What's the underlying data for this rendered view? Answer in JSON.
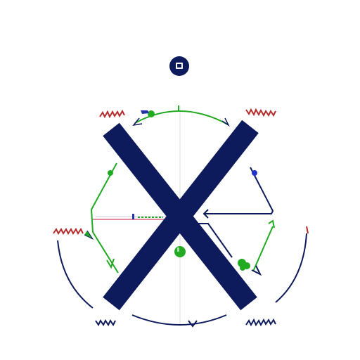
{
  "canvas": {
    "background": "#ffffff"
  },
  "colors": {
    "navy": "#0d1a5c",
    "green": "#22aa22",
    "red": "#b52a2a",
    "pink": "#e68aa0",
    "grey_line": "#d8d8d8"
  },
  "emblem": {
    "name": "x-mark",
    "badge_icon": "circle-badge-icon"
  },
  "labels": {
    "top_left": "",
    "top_right": "",
    "left": "",
    "bottom_left": "",
    "bottom_right": ""
  }
}
